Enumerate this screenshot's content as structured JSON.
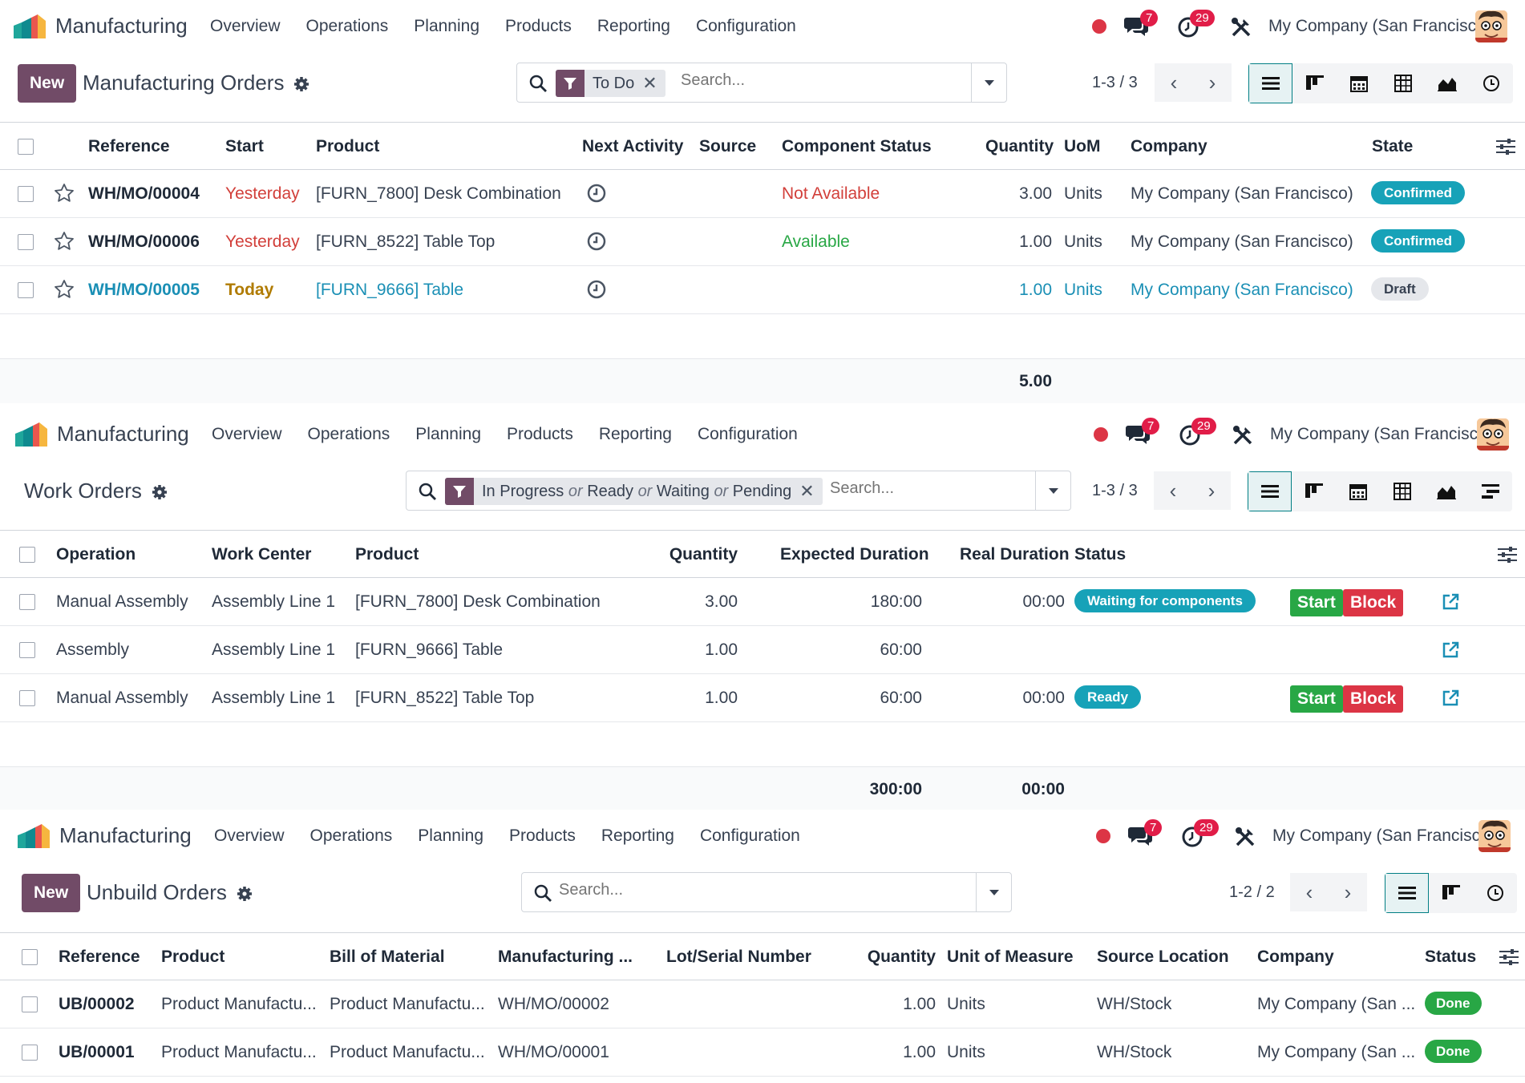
{
  "nav": {
    "app_name": "Manufacturing",
    "menu": [
      "Overview",
      "Operations",
      "Planning",
      "Products",
      "Reporting",
      "Configuration"
    ],
    "messages_count": "7",
    "activities_count": "29",
    "company": "My Company (San Francisco)"
  },
  "colors": {
    "brand": "#714b67",
    "accent": "#017e84",
    "danger": "#d23f3a",
    "success": "#28a745",
    "info": "#17a2b8"
  },
  "mo": {
    "new_label": "New",
    "title": "Manufacturing Orders",
    "facet": "To Do",
    "search_placeholder": "Search...",
    "pager": "1-3 / 3",
    "columns": [
      "Reference",
      "Start",
      "Product",
      "Next Activity",
      "Source",
      "Component Status",
      "Quantity",
      "UoM",
      "Company",
      "State"
    ],
    "rows": [
      {
        "reference": "WH/MO/00004",
        "start": "Yesterday",
        "product": "[FURN_7800] Desk Combination",
        "component_status": "Not Available",
        "quantity": "3.00",
        "uom": "Units",
        "company": "My Company (San Francisco)",
        "state": "Confirmed"
      },
      {
        "reference": "WH/MO/00006",
        "start": "Yesterday",
        "product": "[FURN_8522] Table Top",
        "component_status": "Available",
        "quantity": "1.00",
        "uom": "Units",
        "company": "My Company (San Francisco)",
        "state": "Confirmed"
      },
      {
        "reference": "WH/MO/00005",
        "start": "Today",
        "product": "[FURN_9666] Table",
        "component_status": "",
        "quantity": "1.00",
        "uom": "Units",
        "company": "My Company (San Francisco)",
        "state": "Draft"
      }
    ],
    "total_quantity": "5.00"
  },
  "wo": {
    "title": "Work Orders",
    "facet_parts": [
      "In Progress",
      "or",
      "Ready",
      "or",
      "Waiting",
      "or",
      "Pending"
    ],
    "search_placeholder": "Search...",
    "pager": "1-3 / 3",
    "columns": [
      "Operation",
      "Work Center",
      "Product",
      "Quantity",
      "Expected Duration",
      "Real Duration",
      "Status"
    ],
    "rows": [
      {
        "operation": "Manual Assembly",
        "work_center": "Assembly Line 1",
        "product": "[FURN_7800] Desk Combination",
        "quantity": "3.00",
        "expected": "180:00",
        "real": "00:00",
        "status": "Waiting for components",
        "start": "Start",
        "block": "Block"
      },
      {
        "operation": "Assembly",
        "work_center": "Assembly Line 1",
        "product": "[FURN_9666] Table",
        "quantity": "1.00",
        "expected": "60:00",
        "real": "",
        "status": "",
        "start": "",
        "block": ""
      },
      {
        "operation": "Manual Assembly",
        "work_center": "Assembly Line 1",
        "product": "[FURN_8522] Table Top",
        "quantity": "1.00",
        "expected": "60:00",
        "real": "00:00",
        "status": "Ready",
        "start": "Start",
        "block": "Block"
      }
    ],
    "total_expected": "300:00",
    "total_real": "00:00"
  },
  "ub": {
    "new_label": "New",
    "title": "Unbuild Orders",
    "search_placeholder": "Search...",
    "pager": "1-2 / 2",
    "columns": [
      "Reference",
      "Product",
      "Bill of Material",
      "Manufacturing ...",
      "Lot/Serial Number",
      "Quantity",
      "Unit of Measure",
      "Source Location",
      "Company",
      "Status"
    ],
    "rows": [
      {
        "reference": "UB/00002",
        "product": "Product Manufactu...",
        "bom": "Product Manufactu...",
        "mo": "WH/MO/00002",
        "lot": "",
        "quantity": "1.00",
        "uom": "Units",
        "source": "WH/Stock",
        "company": "My Company (San ...",
        "status": "Done"
      },
      {
        "reference": "UB/00001",
        "product": "Product Manufactu...",
        "bom": "Product Manufactu...",
        "mo": "WH/MO/00001",
        "lot": "",
        "quantity": "1.00",
        "uom": "Units",
        "source": "WH/Stock",
        "company": "My Company (San ...",
        "status": "Done"
      }
    ]
  }
}
